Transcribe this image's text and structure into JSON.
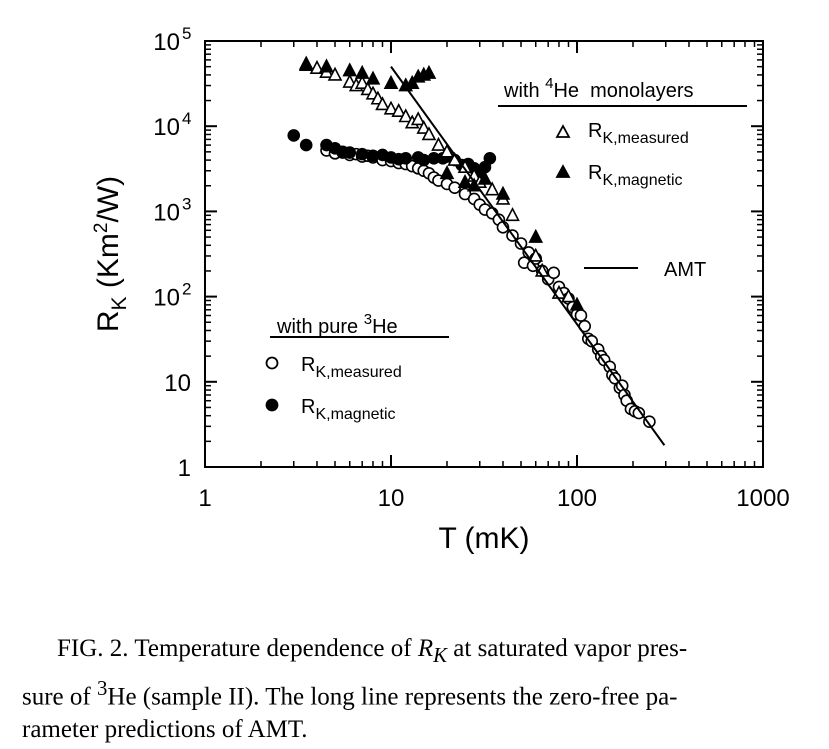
{
  "chart_data": {
    "type": "scatter",
    "xscale": "log",
    "yscale": "log",
    "xlim": [
      1,
      1000
    ],
    "ylim": [
      1,
      100000
    ],
    "xlabel": "T (mK)",
    "ylabel_main": "R",
    "ylabel_sub": "K",
    "ylabel_unit_pre": " (Km",
    "ylabel_unit_sup": "2",
    "ylabel_unit_post": "/W)",
    "x_ticks": [
      {
        "value": 1,
        "label": "1"
      },
      {
        "value": 10,
        "label": "10"
      },
      {
        "value": 100,
        "label": "100"
      },
      {
        "value": 1000,
        "label": "1000"
      }
    ],
    "y_ticks": [
      {
        "value": 1,
        "label": "1",
        "sup": ""
      },
      {
        "value": 10,
        "label": "10",
        "sup": ""
      },
      {
        "value": 100,
        "label": "10",
        "sup": "2"
      },
      {
        "value": 1000,
        "label": "10",
        "sup": "3"
      },
      {
        "value": 10000,
        "label": "10",
        "sup": "4"
      },
      {
        "value": 100000,
        "label": "10",
        "sup": "5"
      }
    ],
    "legend_he4": {
      "title_pre": "with ",
      "title_sup": "4",
      "title_post": "He  monolayers",
      "measured_main": "R",
      "measured_sub": "K,measured",
      "magnetic_main": "R",
      "magnetic_sub": "K,magnetic"
    },
    "legend_he3": {
      "title_pre": "with pure ",
      "title_sup": "3",
      "title_post": "He",
      "measured_main": "R",
      "measured_sub": "K,measured",
      "magnetic_main": "R",
      "magnetic_sub": "K,magnetic"
    },
    "legend_amt": "AMT",
    "series": [
      {
        "name": "with 3He R_K,measured",
        "marker": "open-circle",
        "points": [
          [
            4.5,
            5200
          ],
          [
            5,
            4800
          ],
          [
            5.5,
            4900
          ],
          [
            6,
            4600
          ],
          [
            6.5,
            4700
          ],
          [
            7,
            4400
          ],
          [
            7.5,
            4500
          ],
          [
            8,
            4300
          ],
          [
            9,
            4000
          ],
          [
            10,
            3900
          ],
          [
            11,
            3700
          ],
          [
            12,
            3600
          ],
          [
            13,
            3400
          ],
          [
            14,
            3200
          ],
          [
            15,
            3000
          ],
          [
            16,
            2800
          ],
          [
            17,
            2500
          ],
          [
            18,
            2300
          ],
          [
            20,
            2100
          ],
          [
            22,
            1900
          ],
          [
            25,
            1600
          ],
          [
            28,
            1400
          ],
          [
            30,
            1200
          ],
          [
            32,
            1050
          ],
          [
            35,
            950
          ],
          [
            38,
            800
          ],
          [
            40,
            650
          ],
          [
            45,
            520
          ],
          [
            50,
            420
          ],
          [
            52,
            250
          ],
          [
            55,
            330
          ],
          [
            58,
            230
          ],
          [
            60,
            280
          ],
          [
            65,
            200
          ],
          [
            70,
            160
          ],
          [
            75,
            190
          ],
          [
            80,
            130
          ],
          [
            85,
            110
          ],
          [
            90,
            95
          ],
          [
            95,
            75
          ],
          [
            100,
            62
          ],
          [
            105,
            60
          ],
          [
            110,
            45
          ],
          [
            115,
            32
          ],
          [
            120,
            30
          ],
          [
            130,
            24
          ],
          [
            135,
            20
          ],
          [
            140,
            18
          ],
          [
            150,
            15
          ],
          [
            155,
            12
          ],
          [
            160,
            11
          ],
          [
            170,
            8.5
          ],
          [
            175,
            9
          ],
          [
            180,
            7
          ],
          [
            185,
            6
          ],
          [
            195,
            4.8
          ],
          [
            205,
            4.5
          ],
          [
            215,
            4.3
          ],
          [
            245,
            3.4
          ]
        ]
      },
      {
        "name": "with 3He R_K,magnetic",
        "marker": "filled-circle",
        "points": [
          [
            3,
            7800
          ],
          [
            3.5,
            6000
          ],
          [
            4.5,
            6000
          ],
          [
            5,
            5500
          ],
          [
            5.5,
            5000
          ],
          [
            6,
            4900
          ],
          [
            7,
            4700
          ],
          [
            8,
            4500
          ],
          [
            9,
            4600
          ],
          [
            10,
            4300
          ],
          [
            11,
            4100
          ],
          [
            12,
            4200
          ],
          [
            14,
            4300
          ],
          [
            15,
            4000
          ],
          [
            17,
            4200
          ],
          [
            19,
            4200
          ],
          [
            20,
            4400
          ],
          [
            22,
            4000
          ],
          [
            24,
            3500
          ],
          [
            26,
            3600
          ],
          [
            28,
            3200
          ],
          [
            30,
            2600
          ],
          [
            32,
            3300
          ],
          [
            34,
            4200
          ]
        ]
      },
      {
        "name": "with 4He monolayers R_K,measured",
        "marker": "open-triangle",
        "points": [
          [
            3.5,
            52000
          ],
          [
            4,
            48000
          ],
          [
            4.5,
            43000
          ],
          [
            5,
            40000
          ],
          [
            6,
            33000
          ],
          [
            6.5,
            30000
          ],
          [
            7,
            32000
          ],
          [
            7.5,
            27000
          ],
          [
            8,
            24000
          ],
          [
            8.5,
            21000
          ],
          [
            9,
            18000
          ],
          [
            10,
            16000
          ],
          [
            11,
            15000
          ],
          [
            12,
            13000
          ],
          [
            13,
            11000
          ],
          [
            14,
            12000
          ],
          [
            15,
            9500
          ],
          [
            16,
            8000
          ],
          [
            18,
            6000
          ],
          [
            20,
            5000
          ],
          [
            22,
            4000
          ],
          [
            25,
            3300
          ],
          [
            28,
            2600
          ],
          [
            30,
            2200
          ],
          [
            35,
            1800
          ],
          [
            40,
            1400
          ],
          [
            45,
            900
          ],
          [
            60,
            300
          ],
          [
            65,
            200
          ],
          [
            80,
            110
          ],
          [
            90,
            100
          ]
        ]
      },
      {
        "name": "with 4He monolayers R_K,magnetic",
        "marker": "filled-triangle",
        "points": [
          [
            3.5,
            54000
          ],
          [
            4.5,
            50000
          ],
          [
            6,
            45000
          ],
          [
            7,
            42000
          ],
          [
            8,
            36000
          ],
          [
            10,
            32000
          ],
          [
            12,
            30000
          ],
          [
            13,
            32000
          ],
          [
            14,
            38000
          ],
          [
            15,
            40000
          ],
          [
            16,
            42000
          ],
          [
            20,
            2800
          ],
          [
            25,
            2200
          ],
          [
            28,
            2000
          ],
          [
            32,
            2400
          ],
          [
            40,
            1600
          ],
          [
            60,
            500
          ],
          [
            100,
            80
          ]
        ]
      }
    ],
    "amt_line": {
      "x_start": 10,
      "y_start": 50000,
      "x_end": 295,
      "y_end": 1.8,
      "style": "solid"
    }
  },
  "caption": {
    "line1_pre": "FIG. 2. Temperature dependence of ",
    "line1_var": "R",
    "line1_sub": "K",
    "line1_post": " at saturated vapor pres-",
    "line2_pre": "sure of ",
    "line2_sup": "3",
    "line2_post": "He (sample II). The long line represents the zero-free pa-",
    "line3": "rameter predictions of AMT."
  }
}
